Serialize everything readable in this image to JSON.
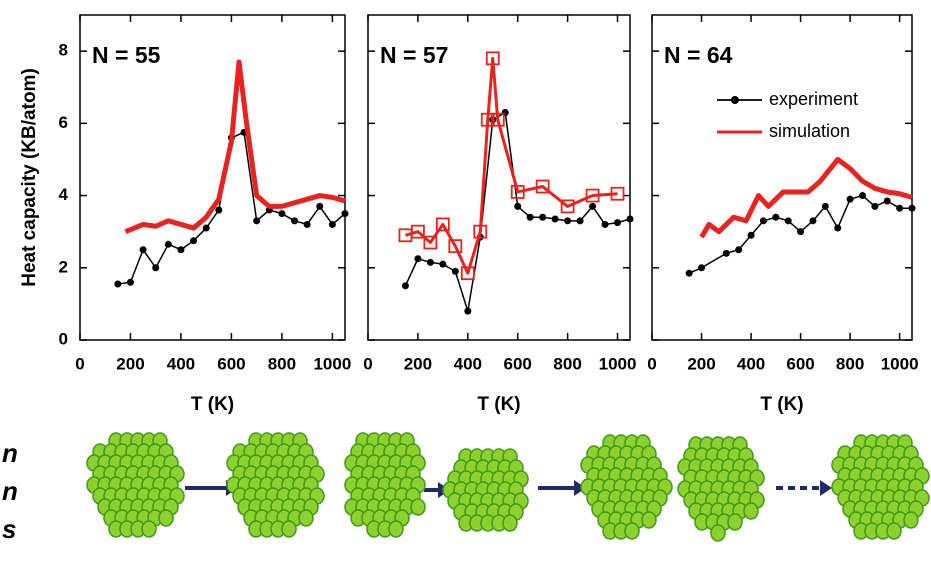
{
  "chart_data": [
    {
      "type": "line",
      "annotation": "N = 55",
      "ylabel": "Heat capacity (KB/atom)",
      "xlabel": "T (K)",
      "xlim": [
        0,
        1050
      ],
      "ylim": [
        0,
        9
      ],
      "xticks": [
        0,
        200,
        400,
        600,
        800,
        1000
      ],
      "yticks": [
        0,
        2,
        4,
        6,
        8
      ],
      "series": [
        {
          "name": "experiment",
          "color": "#000000",
          "marker": "circle",
          "x": [
            150,
            200,
            250,
            300,
            350,
            400,
            450,
            500,
            550,
            600,
            650,
            700,
            750,
            800,
            850,
            900,
            950,
            1000,
            1050
          ],
          "values": [
            1.55,
            1.6,
            2.5,
            2.0,
            2.65,
            2.5,
            2.75,
            3.1,
            3.6,
            5.6,
            5.75,
            3.3,
            3.6,
            3.5,
            3.3,
            3.2,
            3.7,
            3.2,
            3.5
          ]
        },
        {
          "name": "simulation",
          "color": "#e8231f",
          "x": [
            180,
            250,
            300,
            350,
            400,
            450,
            500,
            550,
            600,
            630,
            660,
            700,
            750,
            800,
            850,
            900,
            950,
            1000,
            1050
          ],
          "values": [
            3.0,
            3.2,
            3.15,
            3.3,
            3.2,
            3.1,
            3.4,
            3.9,
            5.5,
            7.7,
            6.0,
            4.0,
            3.7,
            3.7,
            3.8,
            3.9,
            4.0,
            3.95,
            3.85
          ]
        }
      ]
    },
    {
      "type": "line",
      "annotation": "N = 57",
      "xlabel": "T (K)",
      "xlim": [
        0,
        1050
      ],
      "ylim": [
        0,
        9
      ],
      "xticks": [
        0,
        200,
        400,
        600,
        800,
        1000
      ],
      "yticks": [
        0,
        2,
        4,
        6,
        8
      ],
      "series": [
        {
          "name": "experiment",
          "color": "#000000",
          "marker": "circle",
          "x": [
            150,
            200,
            250,
            300,
            350,
            400,
            450,
            500,
            550,
            600,
            650,
            700,
            750,
            800,
            850,
            900,
            950,
            1000,
            1050
          ],
          "values": [
            1.5,
            2.25,
            2.15,
            2.1,
            1.9,
            0.8,
            2.85,
            6.1,
            6.3,
            3.7,
            3.4,
            3.4,
            3.35,
            3.3,
            3.3,
            3.7,
            3.2,
            3.25,
            3.35
          ]
        },
        {
          "name": "simulation",
          "color": "#e8231f",
          "marker": "square",
          "x": [
            150,
            200,
            250,
            300,
            350,
            400,
            450,
            480,
            500,
            520,
            600,
            700,
            800,
            900,
            1000
          ],
          "values": [
            2.9,
            3.0,
            2.7,
            3.2,
            2.6,
            1.85,
            3.0,
            6.1,
            7.8,
            6.1,
            4.1,
            4.25,
            3.7,
            4.0,
            4.05
          ]
        }
      ]
    },
    {
      "type": "line",
      "annotation": "N = 64",
      "xlabel": "T (K)",
      "xlim": [
        0,
        1050
      ],
      "ylim": [
        0,
        9
      ],
      "xticks": [
        0,
        200,
        400,
        600,
        800,
        1000
      ],
      "yticks": [
        0,
        2,
        4,
        6,
        8
      ],
      "legend": "upper right",
      "series": [
        {
          "name": "experiment",
          "color": "#000000",
          "marker": "circle",
          "x": [
            150,
            200,
            300,
            350,
            400,
            450,
            500,
            550,
            600,
            650,
            700,
            750,
            800,
            850,
            900,
            950,
            1000,
            1050
          ],
          "values": [
            1.85,
            2.0,
            2.4,
            2.5,
            2.9,
            3.3,
            3.4,
            3.3,
            3.0,
            3.3,
            3.7,
            3.1,
            3.9,
            4.0,
            3.7,
            3.85,
            3.65,
            3.65
          ]
        },
        {
          "name": "simulation",
          "color": "#e8231f",
          "x": [
            200,
            230,
            270,
            330,
            380,
            430,
            470,
            530,
            580,
            630,
            680,
            750,
            800,
            850,
            900,
            950,
            1000,
            1050
          ],
          "values": [
            2.85,
            3.2,
            3.0,
            3.4,
            3.3,
            4.0,
            3.7,
            4.1,
            4.1,
            4.1,
            4.4,
            5.0,
            4.75,
            4.4,
            4.2,
            4.1,
            4.05,
            3.95
          ]
        }
      ]
    }
  ],
  "fragments": [
    "n",
    "n",
    "s"
  ]
}
